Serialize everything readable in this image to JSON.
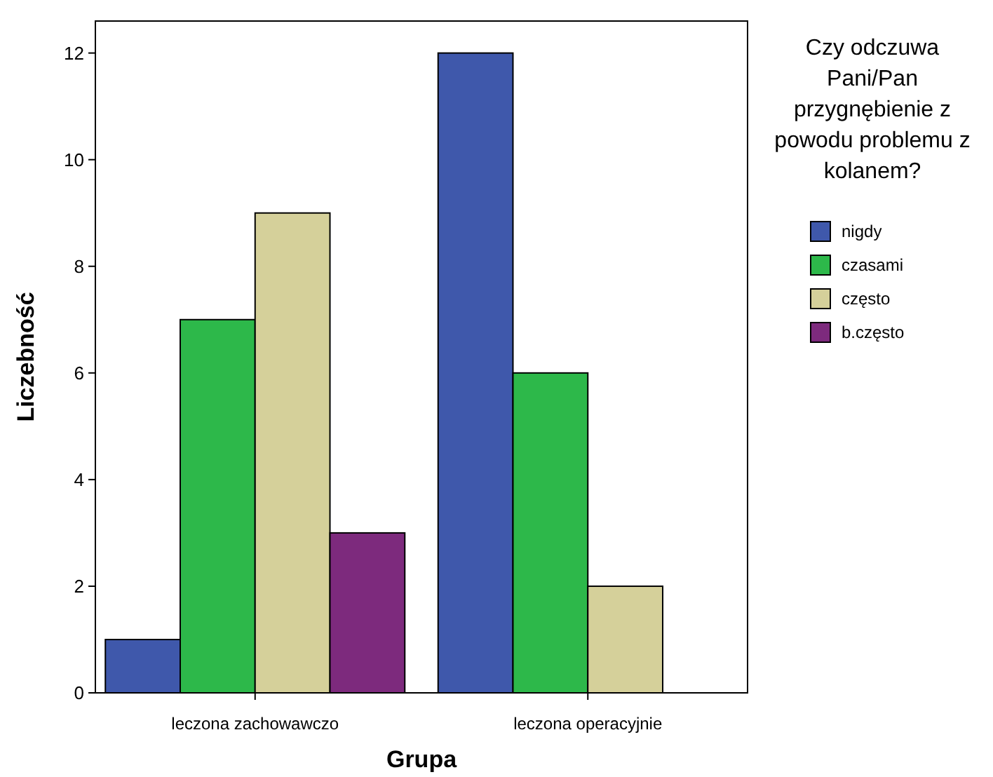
{
  "chart_data": {
    "type": "bar",
    "xlabel": "Grupa",
    "ylabel": "Liczebność",
    "legend_title": "Czy odczuwa Pani/Pan przygnębienie z powodu problemu z kolanem?",
    "categories": [
      "leczona zachowawczo",
      "leczona operacyjnie"
    ],
    "series": [
      {
        "name": "nigdy",
        "color": "#3f58ab",
        "values": [
          1,
          12
        ]
      },
      {
        "name": "czasami",
        "color": "#2db84a",
        "values": [
          7,
          6
        ]
      },
      {
        "name": "często",
        "color": "#d5d09a",
        "values": [
          9,
          2
        ]
      },
      {
        "name": "b.często",
        "color": "#7d2a7d",
        "values": [
          3,
          null
        ]
      }
    ],
    "ylim": [
      0,
      12.6
    ],
    "yticks": [
      0,
      2,
      4,
      6,
      8,
      10,
      12
    ],
    "grid": false,
    "legend": "right"
  }
}
